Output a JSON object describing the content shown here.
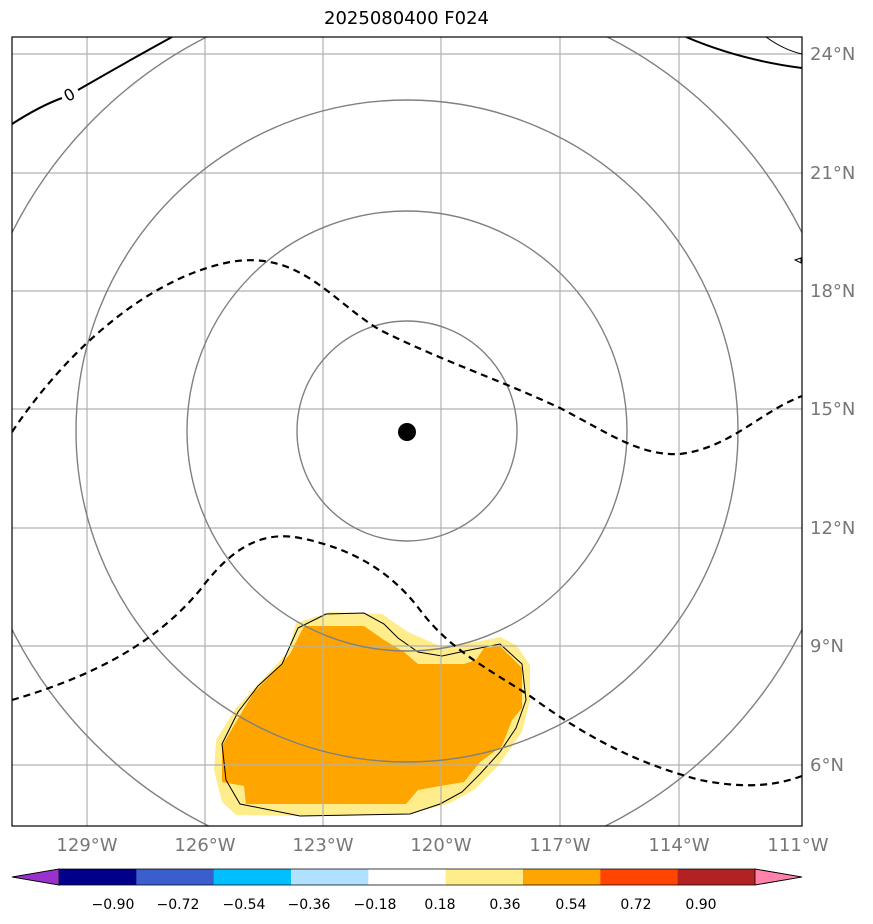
{
  "title": "2025080400 F024",
  "map": {
    "lon_labels": [
      "129°W",
      "126°W",
      "123°W",
      "120°W",
      "117°W",
      "114°W",
      "111°W"
    ],
    "lat_labels": [
      "24°N",
      "21°N",
      "18°N",
      "15°N",
      "12°N",
      "9°N",
      "6°N"
    ],
    "contour_label": "0",
    "center_marker": "storm-center"
  },
  "colorbar": {
    "ticks": [
      "−0.90",
      "−0.72",
      "−0.54",
      "−0.36",
      "−0.18",
      "0.18",
      "0.36",
      "0.54",
      "0.72",
      "0.90"
    ],
    "colors": [
      "#9932CC",
      "#00008B",
      "#3A5FCD",
      "#00BFFF",
      "#B0E2FF",
      "#FFFFFF",
      "#FFEC8B",
      "#FFA500",
      "#FF4500",
      "#B22222",
      "#FF82AB"
    ]
  }
}
